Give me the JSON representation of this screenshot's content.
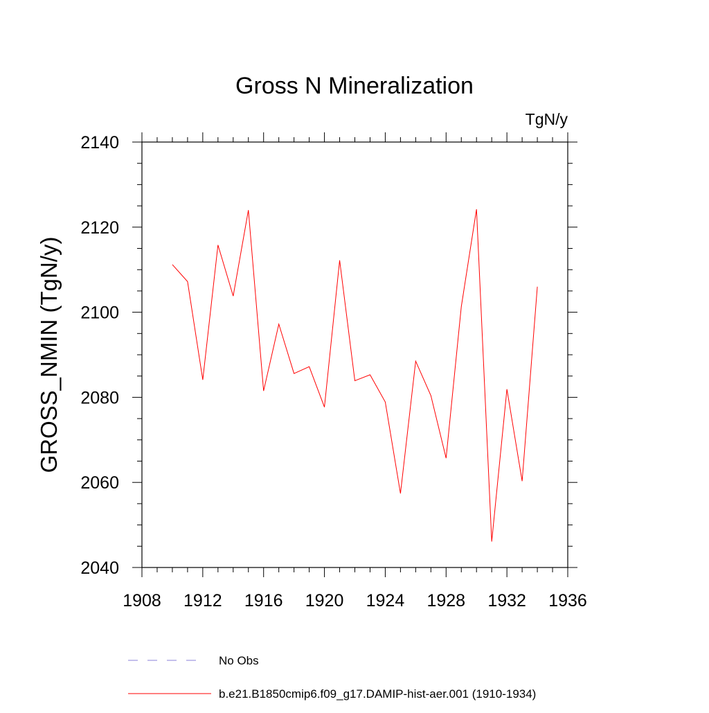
{
  "chart_data": {
    "type": "line",
    "title": "Gross N Mineralization",
    "units_label": "TgN/y",
    "ylabel": "GROSS_NMIN  (TgN/y)",
    "xlabel": "",
    "xlim": [
      1908,
      1936
    ],
    "ylim": [
      2040,
      2140
    ],
    "x_ticks": [
      "1908",
      "1912",
      "1916",
      "1920",
      "1924",
      "1928",
      "1932",
      "1936"
    ],
    "y_ticks": [
      "2040",
      "2060",
      "2080",
      "2100",
      "2120",
      "2140"
    ],
    "x": [
      1910,
      1911,
      1912,
      1913,
      1914,
      1915,
      1916,
      1917,
      1918,
      1919,
      1920,
      1921,
      1922,
      1923,
      1924,
      1925,
      1926,
      1927,
      1928,
      1929,
      1930,
      1931,
      1932,
      1933,
      1934
    ],
    "series": [
      {
        "name": "b.e21.B1850cmip6.f09_g17.DAMIP-hist-aer.001 (1910-1934)",
        "color": "#ff0000",
        "values": [
          2111.2,
          2107.2,
          2084.1,
          2115.8,
          2103.8,
          2124.0,
          2081.5,
          2097.2,
          2085.6,
          2087.2,
          2077.7,
          2112.2,
          2083.9,
          2085.3,
          2078.9,
          2057.4,
          2088.5,
          2080.4,
          2065.7,
          2101.3,
          2124.2,
          2046.1,
          2081.9,
          2060.3,
          2106.0
        ]
      }
    ],
    "legend": {
      "placement": "bottom",
      "entries": [
        {
          "label": "No Obs",
          "color": "#8a7fd8",
          "style": "dashed"
        },
        {
          "label": "b.e21.B1850cmip6.f09_g17.DAMIP-hist-aer.001 (1910-1934)",
          "color": "#ff0000",
          "style": "solid"
        }
      ]
    }
  }
}
